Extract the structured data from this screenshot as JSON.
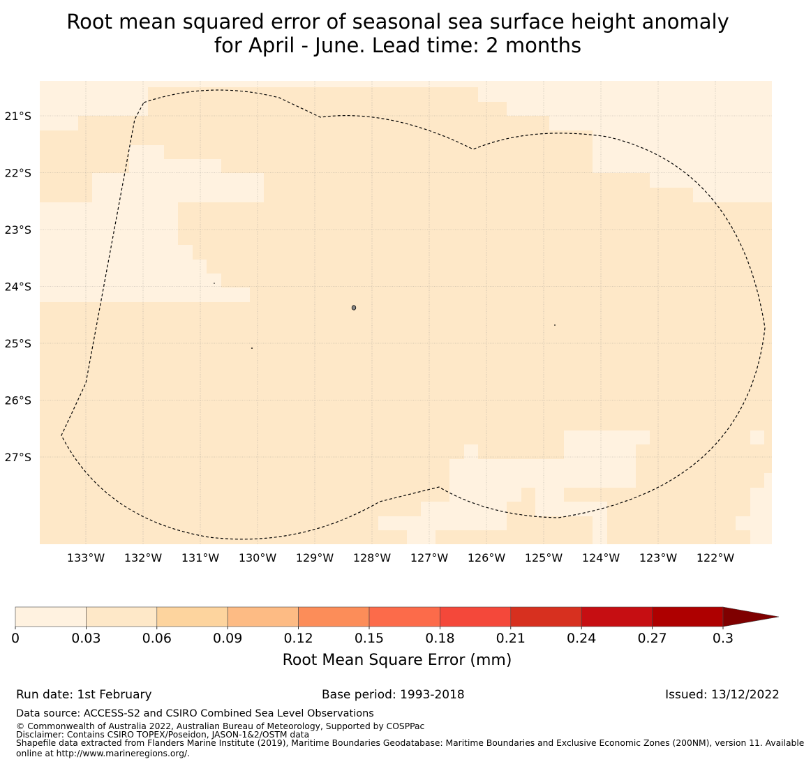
{
  "title": {
    "line1": "Root mean squared error of seasonal sea surface height anomaly",
    "line2": "for April - June. Lead time: 2 months"
  },
  "map": {
    "lat_labels": [
      "21°S",
      "22°S",
      "23°S",
      "24°S",
      "25°S",
      "26°S",
      "27°S"
    ],
    "lat_values": [
      -21,
      -22,
      -23,
      -24,
      -25,
      -26,
      -27
    ],
    "lon_labels": [
      "133°W",
      "132°W",
      "131°W",
      "130°W",
      "129°W",
      "128°W",
      "127°W",
      "126°W",
      "125°W",
      "124°W",
      "123°W",
      "122°W"
    ],
    "lon_values": [
      -133,
      -132,
      -131,
      -130,
      -129,
      -128,
      -127,
      -126,
      -125,
      -124,
      -123,
      -122
    ],
    "lon_range": [
      -133.8,
      -121.0
    ],
    "lat_range": [
      -28.5,
      -20.4
    ],
    "grid": true,
    "boundary": "dashed EEZ outline",
    "fill_colors": {
      "low": "#fff2e0",
      "mid": "#fee8c8"
    }
  },
  "colorbar": {
    "label": "Root Mean Square Error (mm)",
    "ticks": [
      "0",
      "0.03",
      "0.06",
      "0.09",
      "0.12",
      "0.15",
      "0.18",
      "0.21",
      "0.24",
      "0.27",
      "0.3"
    ],
    "colors": [
      "#fff2e0",
      "#fee8c8",
      "#fdd49e",
      "#fdbb84",
      "#fc8d59",
      "#fc6b4a",
      "#f4483a",
      "#d7301f",
      "#c60e12",
      "#ae0000",
      "#7f0000"
    ],
    "extend": "max"
  },
  "footer": {
    "run_date": "Run date: 1st February",
    "base_period": "Base period: 1993-2018",
    "issued": "Issued: 13/12/2022",
    "data_source": "Data source: ACCESS-S2 and CSIRO Combined Sea Level Observations",
    "copyright": "© Commonwealth of Australia 2022, Australian Bureau of Meteorology, Supported by COSPPac",
    "disclaimer": "Disclaimer: Contains CSIRO TOPEX/Poseidon, JASON-1&2/OSTM data",
    "shapefile_line1": "Shapefile data extracted from Flanders Marine Institute (2019), Maritime Boundaries Geodatabase: Maritime Boundaries and Exclusive Economic Zones (200NM), version 11. Available",
    "shapefile_line2": "online at http://www.marineregions.org/."
  }
}
